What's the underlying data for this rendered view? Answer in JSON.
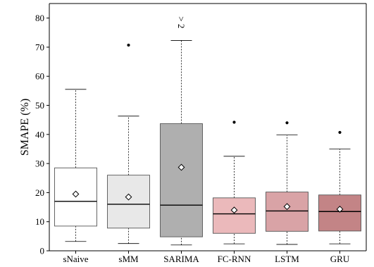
{
  "chart_data": {
    "type": "box",
    "ylabel": "SMAPE (%)",
    "xlabel": "",
    "ylim": [
      0,
      85
    ],
    "yticks": [
      0,
      10,
      20,
      30,
      40,
      50,
      60,
      70,
      80
    ],
    "grid": false,
    "legend": "none",
    "categories": [
      "sNaive",
      "sMM",
      "SARIMA",
      "FC-RNN",
      "LSTM",
      "GRU"
    ],
    "series": [
      {
        "category": "sNaive",
        "color": "#ffffff",
        "whisker_low": 3.2,
        "q1": 8.5,
        "median": 17.0,
        "q3": 28.5,
        "whisker_high": 55.5,
        "mean": 19.5,
        "outliers": []
      },
      {
        "category": "sMM",
        "color": "#e8e8e8",
        "whisker_low": 2.5,
        "q1": 7.8,
        "median": 16.0,
        "q3": 26.0,
        "whisker_high": 46.3,
        "mean": 18.5,
        "outliers": [
          70.7
        ]
      },
      {
        "category": "SARIMA",
        "color": "#afafaf",
        "whisker_low": 2.0,
        "q1": 4.8,
        "median": 15.7,
        "q3": 43.7,
        "whisker_high": 72.3,
        "mean": 28.7,
        "outliers": []
      },
      {
        "category": "FC-RNN",
        "color": "#ebb9bb",
        "whisker_low": 2.4,
        "q1": 6.0,
        "median": 12.7,
        "q3": 18.2,
        "whisker_high": 32.5,
        "mean": 14.0,
        "outliers": [
          44.2
        ]
      },
      {
        "category": "LSTM",
        "color": "#d9a3a6",
        "whisker_low": 2.2,
        "q1": 6.7,
        "median": 13.7,
        "q3": 20.2,
        "whisker_high": 39.8,
        "mean": 15.2,
        "outliers": [
          44.0
        ]
      },
      {
        "category": "GRU",
        "color": "#c38486",
        "whisker_low": 2.4,
        "q1": 6.8,
        "median": 13.5,
        "q3": 19.2,
        "whisker_high": 35.0,
        "mean": 14.3,
        "outliers": [
          40.7
        ]
      }
    ],
    "annotations": [
      {
        "text": "> 2",
        "category": "SARIMA",
        "y": 78.5,
        "rotation": "vertical"
      }
    ]
  }
}
